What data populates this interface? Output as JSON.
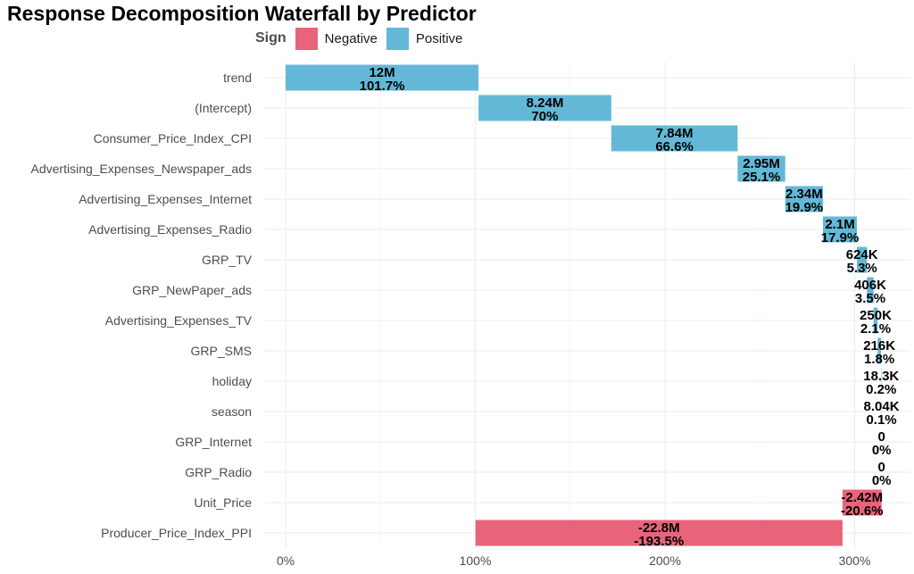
{
  "chart_data": {
    "type": "bar",
    "orientation": "horizontal-waterfall",
    "title": "Response Decomposition Waterfall by Predictor",
    "xlabel": "",
    "ylabel": "",
    "xlim": [
      0,
      327
    ],
    "x_ticks": [
      0,
      100,
      200,
      300
    ],
    "x_tick_labels": [
      "0%",
      "100%",
      "200%",
      "300%"
    ],
    "grid": true,
    "legend": {
      "title": "Sign",
      "placement": "top-left",
      "entries": [
        {
          "name": "Negative",
          "color": "#e8647a"
        },
        {
          "name": "Positive",
          "color": "#63b8d8"
        }
      ]
    },
    "categories": [
      "trend",
      "(Intercept)",
      "Consumer_Price_Index_CPI",
      "Advertising_Expenses_Newspaper_ads",
      "Advertising_Expenses_Internet",
      "Advertising_Expenses_Radio",
      "GRP_TV",
      "GRP_NewPaper_ads",
      "Advertising_Expenses_TV",
      "GRP_SMS",
      "holiday",
      "season",
      "GRP_Internet",
      "GRP_Radio",
      "Unit_Price",
      "Producer_Price_Index_PPI"
    ],
    "bars": [
      {
        "start": 0,
        "end": 101.7,
        "sign": "Positive",
        "value_label": "12M",
        "pct_label": "101.7%"
      },
      {
        "start": 101.7,
        "end": 171.7,
        "sign": "Positive",
        "value_label": "8.24M",
        "pct_label": "70%"
      },
      {
        "start": 171.7,
        "end": 238.3,
        "sign": "Positive",
        "value_label": "7.84M",
        "pct_label": "66.6%"
      },
      {
        "start": 238.3,
        "end": 263.4,
        "sign": "Positive",
        "value_label": "2.95M",
        "pct_label": "25.1%"
      },
      {
        "start": 263.4,
        "end": 283.3,
        "sign": "Positive",
        "value_label": "2.34M",
        "pct_label": "19.9%"
      },
      {
        "start": 283.3,
        "end": 301.2,
        "sign": "Positive",
        "value_label": "2.1M",
        "pct_label": "17.9%"
      },
      {
        "start": 301.2,
        "end": 306.5,
        "sign": "Positive",
        "value_label": "624K",
        "pct_label": "5.3%"
      },
      {
        "start": 306.5,
        "end": 310.0,
        "sign": "Positive",
        "value_label": "406K",
        "pct_label": "3.5%"
      },
      {
        "start": 310.0,
        "end": 312.1,
        "sign": "Positive",
        "value_label": "250K",
        "pct_label": "2.1%"
      },
      {
        "start": 312.1,
        "end": 313.9,
        "sign": "Positive",
        "value_label": "216K",
        "pct_label": "1.8%"
      },
      {
        "start": 313.9,
        "end": 314.1,
        "sign": "Positive",
        "value_label": "18.3K",
        "pct_label": "0.2%"
      },
      {
        "start": 314.1,
        "end": 314.2,
        "sign": "Positive",
        "value_label": "8.04K",
        "pct_label": "0.1%"
      },
      {
        "start": 314.2,
        "end": 314.2,
        "sign": "Positive",
        "value_label": "0",
        "pct_label": "0%"
      },
      {
        "start": 314.2,
        "end": 314.2,
        "sign": "Positive",
        "value_label": "0",
        "pct_label": "0%"
      },
      {
        "start": 314.2,
        "end": 293.6,
        "sign": "Negative",
        "value_label": "-2.42M",
        "pct_label": "-20.6%"
      },
      {
        "start": 293.6,
        "end": 100.1,
        "sign": "Negative",
        "value_label": "-22.8M",
        "pct_label": "-193.5%"
      }
    ]
  }
}
